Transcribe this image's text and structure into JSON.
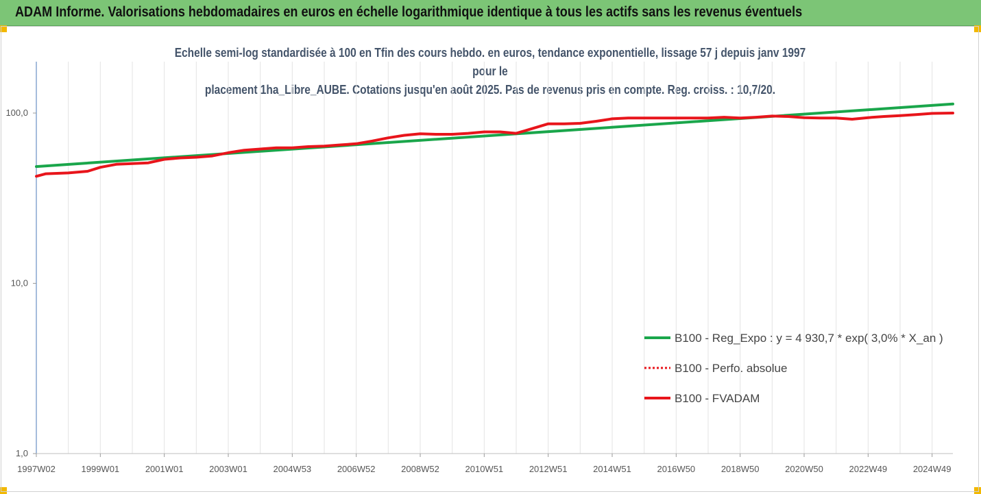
{
  "header": {
    "title": "ADAM Informe. Valorisations hebdomadaires en euros en échelle logarithmique identique à tous les actifs sans les revenus éventuels"
  },
  "colors": {
    "header_bg": "#7cc576",
    "accent_corner": "#f2b800",
    "title_text": "#44546a",
    "series_green": "#1aa64b",
    "series_red": "#e8151b"
  },
  "chart_data": {
    "type": "line",
    "title_line1": "Echelle semi-log standardisée à 100 en Tfin des cours hebdo. en euros, tendance exponentielle, lissage 57 j depuis janv 1997 pour le",
    "title_line2": "placement 1ha_Libre_AUBE. Cotations jusqu'en août 2025. Pas de revenus pris en compte. Reg. croiss. : 10,7/20.",
    "y_scale": "log",
    "ylim": [
      1,
      200
    ],
    "y_ticks": [
      {
        "value": 100,
        "label": "100,0"
      },
      {
        "value": 10,
        "label": "10,0"
      },
      {
        "value": 1,
        "label": "1,0"
      }
    ],
    "xlim": [
      1997.0,
      2025.65
    ],
    "x_ticks": [
      {
        "value": 1997.0,
        "label": "1997W02"
      },
      {
        "value": 1999.0,
        "label": "1999W01"
      },
      {
        "value": 2001.0,
        "label": "2001W01"
      },
      {
        "value": 2003.0,
        "label": "2003W01"
      },
      {
        "value": 2005.0,
        "label": "2004W53"
      },
      {
        "value": 2007.0,
        "label": "2006W52"
      },
      {
        "value": 2009.0,
        "label": "2008W52"
      },
      {
        "value": 2011.0,
        "label": "2010W51"
      },
      {
        "value": 2013.0,
        "label": "2012W51"
      },
      {
        "value": 2015.0,
        "label": "2014W51"
      },
      {
        "value": 2017.0,
        "label": "2016W50"
      },
      {
        "value": 2019.0,
        "label": "2018W50"
      },
      {
        "value": 2021.0,
        "label": "2020W50"
      },
      {
        "value": 2023.0,
        "label": "2022W49"
      },
      {
        "value": 2025.0,
        "label": "2024W49"
      }
    ],
    "grid": {
      "vertical": true,
      "horizontal": false
    },
    "legend_position": "bottom-right",
    "series": [
      {
        "name": "B100 - Reg_Expo : y = 4 930,7 * exp( 3,0% *  X_an )",
        "color": "#1aa64b",
        "style": "solid",
        "x": [
          1997.0,
          2025.65
        ],
        "y": [
          48.5,
          113
        ]
      },
      {
        "name": "B100 - Perfo. absolue",
        "color": "#e8151b",
        "style": "dotted",
        "x": [],
        "y": []
      },
      {
        "name": "B100 - FVADAM",
        "color": "#e8151b",
        "style": "solid",
        "x": [
          1997.0,
          1997.3,
          1998.0,
          1998.6,
          1999.0,
          1999.5,
          2000.0,
          2000.5,
          2001.0,
          2001.5,
          2002.0,
          2002.5,
          2003.0,
          2003.5,
          2004.0,
          2004.5,
          2005.0,
          2005.5,
          2006.0,
          2006.5,
          2007.0,
          2007.5,
          2008.0,
          2008.5,
          2009.0,
          2009.5,
          2010.0,
          2010.5,
          2011.0,
          2011.5,
          2012.0,
          2012.5,
          2013.0,
          2013.5,
          2014.0,
          2014.5,
          2015.0,
          2015.5,
          2016.0,
          2017.0,
          2018.0,
          2018.5,
          2019.0,
          2019.5,
          2020.0,
          2020.5,
          2021.0,
          2021.5,
          2022.0,
          2022.5,
          2023.0,
          2023.5,
          2024.0,
          2024.5,
          2025.0,
          2025.65
        ],
        "y": [
          42.5,
          44,
          44.5,
          45.5,
          48,
          50,
          50.5,
          51,
          53.5,
          54.5,
          55,
          56,
          58.5,
          60.5,
          61.5,
          62.5,
          62.5,
          63.5,
          64,
          65,
          66,
          68.5,
          71.5,
          74,
          75.5,
          75,
          75,
          76,
          77.5,
          77.5,
          76,
          81,
          86.5,
          86.5,
          87,
          89.5,
          92.5,
          93.5,
          93.5,
          93.5,
          93.5,
          94.5,
          93.5,
          94.5,
          96,
          95.5,
          94,
          93.5,
          93.5,
          92,
          94,
          95.5,
          96.5,
          98,
          99.5,
          100
        ]
      }
    ]
  }
}
